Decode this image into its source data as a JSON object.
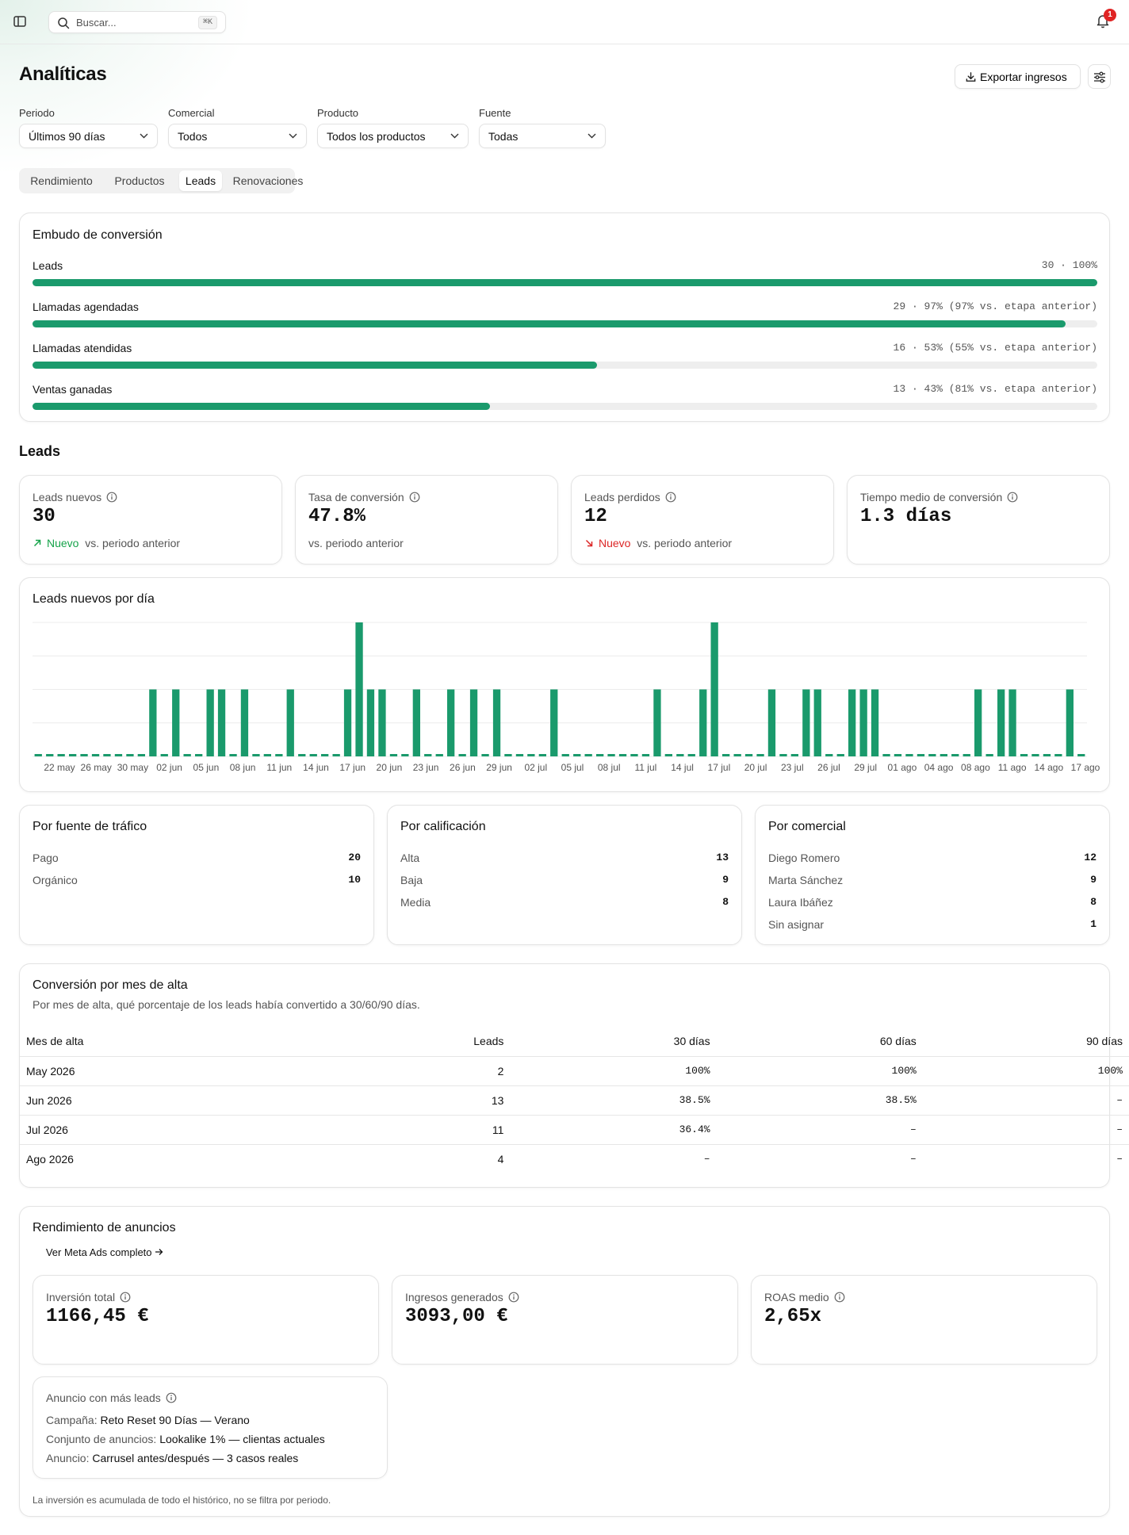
{
  "topbar": {
    "search_placeholder": "Buscar...",
    "search_shortcut": "⌘K",
    "notification_count": "1"
  },
  "header": {
    "title": "Analíticas",
    "export_label": "Exportar ingresos"
  },
  "filters": [
    {
      "label": "Periodo",
      "value": "Últimos 90 días"
    },
    {
      "label": "Comercial",
      "value": "Todos"
    },
    {
      "label": "Producto",
      "value": "Todos los productos"
    },
    {
      "label": "Fuente",
      "value": "Todas"
    }
  ],
  "tabs": [
    {
      "label": "Rendimiento",
      "active": false
    },
    {
      "label": "Productos",
      "active": false
    },
    {
      "label": "Leads",
      "active": true
    },
    {
      "label": "Renovaciones",
      "active": false
    }
  ],
  "funnel": {
    "title": "Embudo de conversión",
    "stages": [
      {
        "label": "Leads",
        "value": "30 · 100%",
        "pct": 100
      },
      {
        "label": "Llamadas agendadas",
        "value": "29 · 97% (97% vs. etapa anterior)",
        "pct": 97
      },
      {
        "label": "Llamadas atendidas",
        "value": "16 · 53% (55% vs. etapa anterior)",
        "pct": 53
      },
      {
        "label": "Ventas ganadas",
        "value": "13 · 43% (81% vs. etapa anterior)",
        "pct": 43
      }
    ]
  },
  "leads_section": {
    "title": "Leads",
    "kpis": [
      {
        "label": "Leads nuevos",
        "value": "30",
        "trend": "Nuevo",
        "trend_dir": "up",
        "sub": "vs. periodo anterior"
      },
      {
        "label": "Tasa de conversión",
        "value": "47.8%",
        "trend": "",
        "trend_dir": "",
        "sub": "vs. periodo anterior"
      },
      {
        "label": "Leads perdidos",
        "value": "12",
        "trend": "Nuevo",
        "trend_dir": "down",
        "sub": "vs. periodo anterior"
      },
      {
        "label": "Tiempo medio de conversión",
        "value": "1.3 días",
        "trend": "",
        "trend_dir": "",
        "sub": ""
      }
    ]
  },
  "chart_data": {
    "type": "bar",
    "title": "Leads nuevos por día",
    "x_tick_labels": [
      "22 may",
      "26 may",
      "30 may",
      "02 jun",
      "05 jun",
      "08 jun",
      "11 jun",
      "14 jun",
      "17 jun",
      "20 jun",
      "23 jun",
      "26 jun",
      "29 jun",
      "02 jul",
      "05 jul",
      "08 jul",
      "11 jul",
      "14 jul",
      "17 jul",
      "20 jul",
      "23 jul",
      "26 jul",
      "29 jul",
      "01 ago",
      "04 ago",
      "08 ago",
      "11 ago",
      "14 ago",
      "17 ago"
    ],
    "values": [
      0,
      0,
      0,
      0,
      0,
      0,
      0,
      0,
      0,
      0,
      1,
      0,
      1,
      0,
      0,
      1,
      1,
      0,
      1,
      0,
      0,
      0,
      1,
      0,
      0,
      0,
      0,
      1,
      2,
      1,
      1,
      0,
      0,
      1,
      0,
      0,
      1,
      0,
      1,
      0,
      1,
      0,
      0,
      0,
      0,
      1,
      0,
      0,
      0,
      0,
      0,
      0,
      0,
      0,
      1,
      0,
      0,
      0,
      1,
      2,
      0,
      0,
      0,
      0,
      1,
      0,
      0,
      1,
      1,
      0,
      0,
      1,
      1,
      1,
      0,
      0,
      0,
      0,
      0,
      0,
      0,
      0,
      1,
      0,
      1,
      1,
      0,
      0,
      0,
      0,
      1,
      0
    ],
    "ylim": [
      0,
      2
    ],
    "grid": true,
    "color": "#1a9a6c"
  },
  "breakdowns": [
    {
      "title": "Por fuente de tráfico",
      "rows": [
        {
          "label": "Pago",
          "value": "20"
        },
        {
          "label": "Orgánico",
          "value": "10"
        }
      ]
    },
    {
      "title": "Por calificación",
      "rows": [
        {
          "label": "Alta",
          "value": "13"
        },
        {
          "label": "Baja",
          "value": "9"
        },
        {
          "label": "Media",
          "value": "8"
        }
      ]
    },
    {
      "title": "Por comercial",
      "rows": [
        {
          "label": "Diego Romero",
          "value": "12"
        },
        {
          "label": "Marta Sánchez",
          "value": "9"
        },
        {
          "label": "Laura Ibáñez",
          "value": "8"
        },
        {
          "label": "Sin asignar",
          "value": "1"
        }
      ]
    }
  ],
  "cohort": {
    "title": "Conversión por mes de alta",
    "subtitle": "Por mes de alta, qué porcentaje de los leads había convertido a 30/60/90 días.",
    "headers": [
      "Mes de alta",
      "Leads",
      "30 días",
      "60 días",
      "90 días"
    ],
    "rows": [
      [
        "May 2026",
        "2",
        "100%",
        "100%",
        "100%"
      ],
      [
        "Jun 2026",
        "13",
        "38.5%",
        "38.5%",
        "–"
      ],
      [
        "Jul 2026",
        "11",
        "36.4%",
        "–",
        "–"
      ],
      [
        "Ago 2026",
        "4",
        "–",
        "–",
        "–"
      ]
    ]
  },
  "ads": {
    "title": "Rendimiento de anuncios",
    "link_label": "Ver Meta Ads completo",
    "kpis": [
      {
        "label": "Inversión total",
        "value": "1166,45 €"
      },
      {
        "label": "Ingresos generados",
        "value": "3093,00 €"
      },
      {
        "label": "ROAS medio",
        "value": "2,65x"
      }
    ],
    "top_ad": {
      "title": "Anuncio con más leads",
      "campaign_label": "Campaña:",
      "campaign": "Reto Reset 90 Días — Verano",
      "adset_label": "Conjunto de anuncios:",
      "adset": "Lookalike 1% — clientas actuales",
      "ad_label": "Anuncio:",
      "ad": "Carrusel antes/después — 3 casos reales"
    },
    "footnote": "La inversión es acumulada de todo el histórico, no se filtra por periodo."
  }
}
